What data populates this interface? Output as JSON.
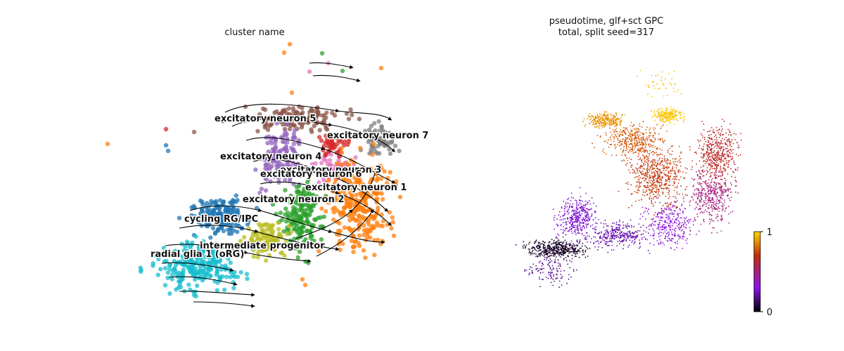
{
  "panels": {
    "left_title": "cluster name",
    "right_title": "pseudotime, glf+sct GPC\ntotal, split seed=317"
  },
  "chart_data": [
    {
      "type": "scatter",
      "title": "cluster name",
      "embedding": "UMAP with velocity streamlines",
      "legend": "on data",
      "axes_visible": false,
      "clusters": [
        {
          "name": "excitatory neuron 5",
          "color": "#8c564b"
        },
        {
          "name": "excitatory neuron 7",
          "color": "#7f7f7f"
        },
        {
          "name": "excitatory neuron 4",
          "color": "#9467bd"
        },
        {
          "name": "excitatory neuron 3",
          "color": "#e377c2"
        },
        {
          "name": "excitatory neuron 6",
          "color": "#d62728"
        },
        {
          "name": "excitatory neuron 1",
          "color": "#ff7f0e"
        },
        {
          "name": "excitatory neuron 2",
          "color": "#2ca02c"
        },
        {
          "name": "cycling RG/IPC",
          "color": "#1f77b4"
        },
        {
          "name": "intermediate progenitor",
          "color": "#bcbd22"
        },
        {
          "name": "radial glia 1 (oRG)",
          "color": "#17becf"
        }
      ]
    },
    {
      "type": "scatter",
      "title": "pseudotime, glf+sct GPC total, split seed=317",
      "axes_visible": false,
      "colorbar": {
        "min": 0,
        "max": 1,
        "ticks": [
          "0",
          "1"
        ],
        "colormap": "gnuplot",
        "stops": [
          "#000000",
          "#8b12ee",
          "#c32d0c",
          "#ffd700"
        ]
      }
    }
  ]
}
